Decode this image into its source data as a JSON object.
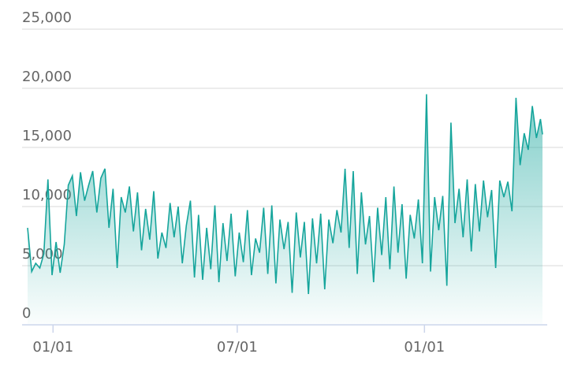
{
  "chart_data": {
    "type": "area",
    "x": [
      -25,
      -21,
      -17,
      -13,
      -9,
      -5,
      -1,
      3,
      7,
      11,
      15,
      19,
      23,
      27,
      31,
      35,
      39,
      43,
      47,
      51,
      55,
      59,
      63,
      67,
      71,
      75,
      79,
      83,
      87,
      91,
      95,
      99,
      103,
      107,
      111,
      115,
      119,
      123,
      127,
      131,
      135,
      139,
      143,
      147,
      151,
      155,
      159,
      163,
      167,
      171,
      175,
      179,
      183,
      187,
      191,
      195,
      199,
      203,
      207,
      211,
      215,
      219,
      223,
      227,
      231,
      235,
      239,
      243,
      247,
      251,
      255,
      259,
      263,
      267,
      271,
      275,
      279,
      283,
      287,
      291,
      295,
      299,
      303,
      307,
      311,
      315,
      319,
      323,
      327,
      331,
      335,
      339,
      343,
      347,
      351,
      355,
      359,
      363,
      367,
      371,
      375,
      379,
      383,
      387,
      391,
      395,
      399,
      403,
      407,
      411,
      415,
      419,
      423,
      427,
      431,
      435,
      439,
      443,
      447,
      451,
      455,
      459,
      463,
      467,
      471,
      475,
      479,
      481
    ],
    "values": [
      8200,
      4500,
      5200,
      4800,
      6000,
      12300,
      4200,
      7000,
      4400,
      6800,
      11800,
      12600,
      9200,
      12900,
      10500,
      11800,
      13000,
      9500,
      12400,
      13200,
      8200,
      11500,
      4800,
      10800,
      9500,
      11700,
      7900,
      11200,
      6300,
      9800,
      7200,
      11300,
      5600,
      7800,
      6500,
      10300,
      7400,
      10000,
      5200,
      8400,
      10500,
      4000,
      9300,
      3800,
      8200,
      4700,
      10100,
      3600,
      8600,
      5400,
      9400,
      4100,
      7800,
      5300,
      9700,
      4200,
      7300,
      6100,
      9900,
      4300,
      10100,
      3500,
      8900,
      6400,
      8700,
      2700,
      9500,
      5700,
      8700,
      2600,
      9000,
      5200,
      9400,
      3000,
      8900,
      6900,
      9700,
      7800,
      13200,
      6500,
      13000,
      4300,
      11200,
      6800,
      9200,
      3600,
      9900,
      5900,
      10800,
      4700,
      11700,
      6100,
      10200,
      3900,
      9300,
      7300,
      10600,
      5200,
      19500,
      4500,
      10800,
      8000,
      10900,
      3300,
      17100,
      8600,
      11500,
      7400,
      12300,
      6200,
      11900,
      7900,
      12200,
      9100,
      11400,
      4800,
      12200,
      10800,
      12100,
      9600,
      19200,
      13500,
      16200,
      14800,
      18500,
      15800,
      17400,
      16100
    ],
    "color": "#16a59c",
    "xlim": [
      -25,
      481
    ],
    "xticks": [
      {
        "value": 0,
        "label": "01/01"
      },
      {
        "value": 181,
        "label": "07/01"
      },
      {
        "value": 365,
        "label": "01/01"
      }
    ],
    "ylim": [
      0,
      25000
    ],
    "yticks": [
      0,
      {
        "value": 5000,
        "label": "5,000"
      },
      {
        "value": 10000,
        "label": "10,000"
      },
      {
        "value": 15000,
        "label": "15,000"
      },
      {
        "value": 20000,
        "label": "20,000"
      },
      {
        "value": 25000,
        "label": "25,000"
      }
    ],
    "grid": true
  }
}
